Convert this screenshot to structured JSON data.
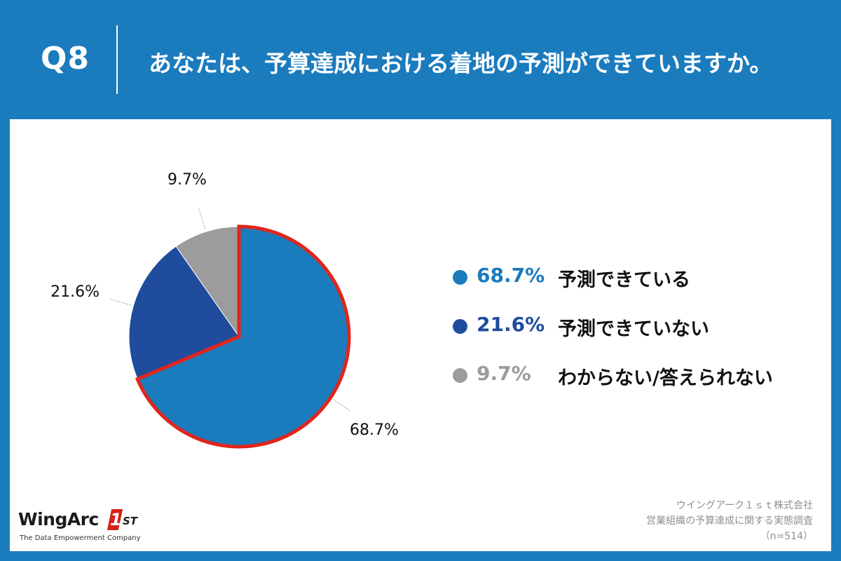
{
  "header": {
    "question_number": "Q8",
    "question_text": "あなたは、予算達成における着地の予測ができていますか。"
  },
  "chart_data": {
    "type": "pie",
    "title": "",
    "slices": [
      {
        "label": "予測できている",
        "value": 68.7,
        "display": "68.7%",
        "color": "#1a7bbd",
        "highlighted": true
      },
      {
        "label": "予測できていない",
        "value": 21.6,
        "display": "21.6%",
        "color": "#1f4c9d",
        "highlighted": false
      },
      {
        "label": "わからない/答えられない",
        "value": 9.7,
        "display": "9.7%",
        "color": "#9c9c9c",
        "highlighted": false
      }
    ],
    "highlight_color": "#e1251b",
    "legend_position": "right"
  },
  "colors": {
    "background": "#1a7bbd",
    "panel": "#ffffff",
    "label_text": "#111111"
  },
  "logo": {
    "word": "WingArc",
    "mark": "1",
    "suffix": "ST",
    "tagline": "The Data Empowerment Company"
  },
  "credits": {
    "company": "ウイングアーク１ｓｔ株式会社",
    "survey": "営業組織の予算達成に関する実態調査",
    "sample": "（n=514）"
  }
}
